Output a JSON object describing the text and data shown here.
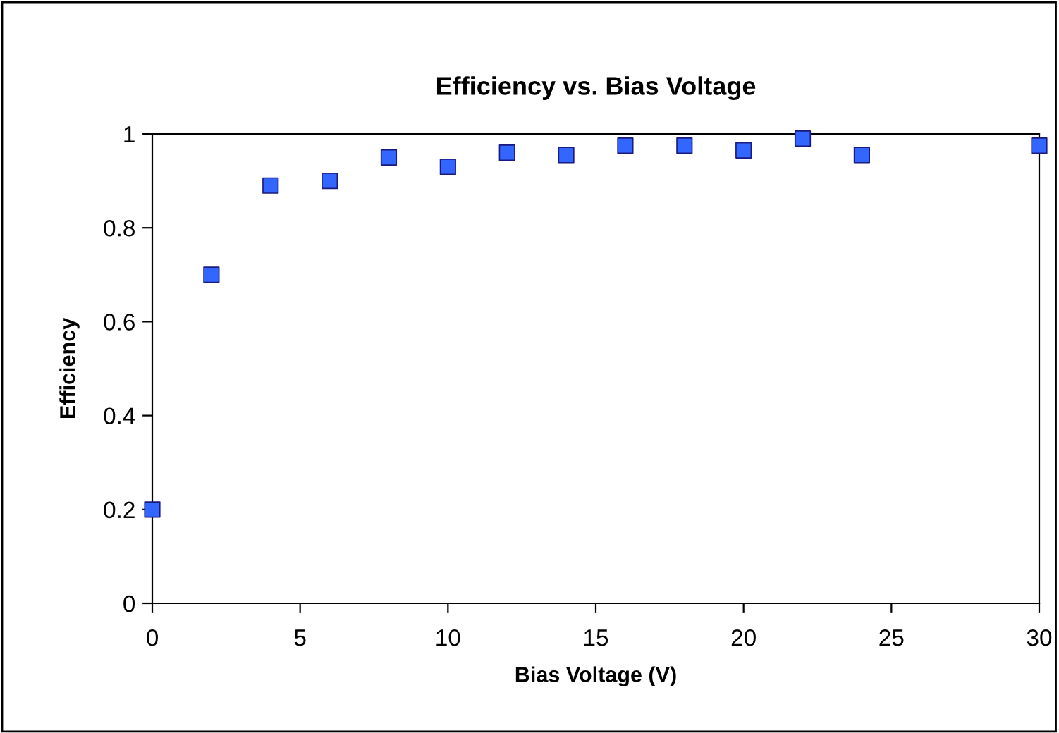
{
  "chart_data": {
    "type": "scatter",
    "title": "Efficiency vs. Bias Voltage",
    "xlabel": "Bias Voltage (V)",
    "ylabel": "Efficiency",
    "series": [
      {
        "color": "#3366ff",
        "x": [
          0,
          2,
          4,
          6,
          8,
          10,
          12,
          14,
          16,
          18,
          20,
          22,
          24,
          30
        ],
        "values": [
          0.2,
          0.7,
          0.89,
          0.9,
          0.95,
          0.93,
          0.96,
          0.955,
          0.975,
          0.975,
          0.965,
          0.99,
          0.955,
          0.975
        ]
      }
    ],
    "xlim": [
      0,
      30
    ],
    "xticks": [
      0,
      5,
      10,
      15,
      20,
      25,
      30
    ],
    "ylim": [
      0,
      1
    ],
    "yticks": [
      0,
      0.2,
      0.4,
      0.6,
      0.8,
      1
    ],
    "grid": false,
    "legend": false,
    "marker": "square"
  }
}
